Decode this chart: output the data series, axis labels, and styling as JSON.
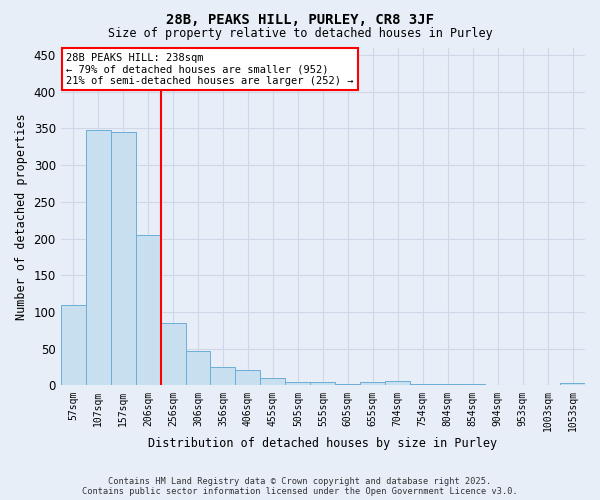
{
  "title1": "28B, PEAKS HILL, PURLEY, CR8 3JF",
  "title2": "Size of property relative to detached houses in Purley",
  "xlabel": "Distribution of detached houses by size in Purley",
  "ylabel": "Number of detached properties",
  "categories": [
    "57sqm",
    "107sqm",
    "157sqm",
    "206sqm",
    "256sqm",
    "306sqm",
    "356sqm",
    "406sqm",
    "455sqm",
    "505sqm",
    "555sqm",
    "605sqm",
    "655sqm",
    "704sqm",
    "754sqm",
    "804sqm",
    "854sqm",
    "904sqm",
    "953sqm",
    "1003sqm",
    "1053sqm"
  ],
  "values": [
    110,
    348,
    345,
    205,
    85,
    47,
    25,
    21,
    10,
    5,
    5,
    2,
    5,
    6,
    2,
    2,
    2,
    1,
    1,
    1,
    4
  ],
  "bar_color": "#c8dff0",
  "bar_edge_color": "#6aaed6",
  "red_line_index": 4,
  "ylim": [
    0,
    460
  ],
  "yticks": [
    0,
    50,
    100,
    150,
    200,
    250,
    300,
    350,
    400,
    450
  ],
  "annotation_title": "28B PEAKS HILL: 238sqm",
  "annotation_line1": "← 79% of detached houses are smaller (952)",
  "annotation_line2": "21% of semi-detached houses are larger (252) →",
  "footnote1": "Contains HM Land Registry data © Crown copyright and database right 2025.",
  "footnote2": "Contains public sector information licensed under the Open Government Licence v3.0.",
  "bg_color": "#e8eef8",
  "grid_color": "#d0d8e8",
  "ann_box_color": "white",
  "ann_edge_color": "red"
}
